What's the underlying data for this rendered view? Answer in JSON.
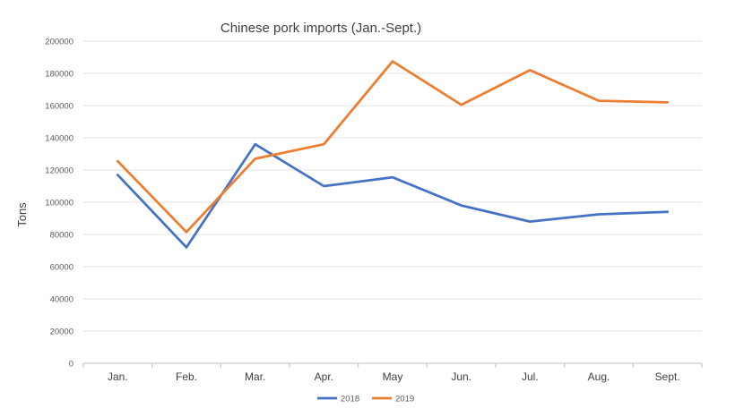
{
  "chart_data": {
    "type": "line",
    "title": "Chinese pork imports (Jan.-Sept.)",
    "xlabel": "",
    "ylabel": "Tons",
    "categories": [
      "Jan.",
      "Feb.",
      "Mar.",
      "Apr.",
      "May",
      "Jun.",
      "Jul.",
      "Aug.",
      "Sept."
    ],
    "ylim": [
      0,
      200000
    ],
    "yticks": [
      "0",
      "20000",
      "40000",
      "60000",
      "80000",
      "100000",
      "120000",
      "140000",
      "160000",
      "180000",
      "200000"
    ],
    "grid": true,
    "legend": "bottom-center",
    "series": [
      {
        "name": "2018",
        "color": "#4472c4",
        "values": [
          117000,
          72000,
          136000,
          110000,
          115500,
          98000,
          88000,
          92500,
          94000
        ]
      },
      {
        "name": "2019",
        "color": "#ed7d31",
        "values": [
          125500,
          81500,
          127000,
          136000,
          187500,
          160500,
          182000,
          163000,
          162000
        ]
      }
    ]
  }
}
